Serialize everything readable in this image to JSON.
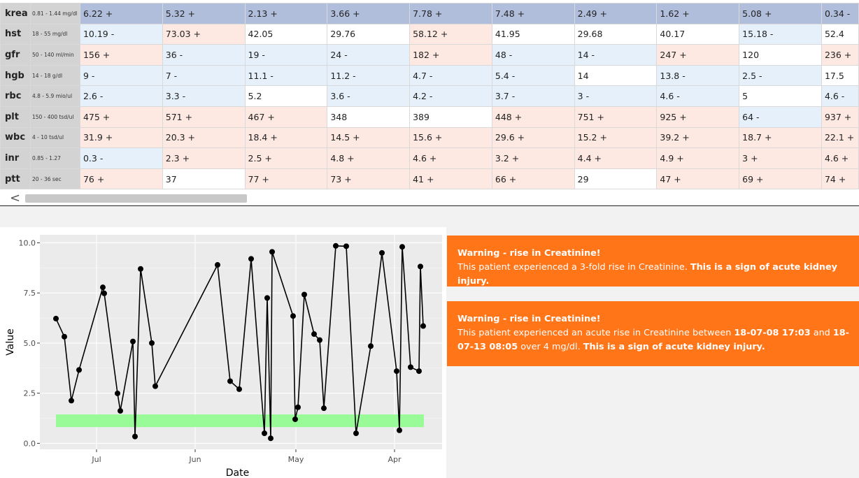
{
  "lab_table": {
    "rows": [
      {
        "param": "krea",
        "range": "0.81 - 1.44 mg/dl",
        "values": [
          {
            "v": "6.22 +",
            "s": "head"
          },
          {
            "v": "5.32 +",
            "s": "head"
          },
          {
            "v": "2.13 +",
            "s": "head"
          },
          {
            "v": "3.66 +",
            "s": "head"
          },
          {
            "v": "7.78 +",
            "s": "head"
          },
          {
            "v": "7.48 +",
            "s": "head"
          },
          {
            "v": "2.49 +",
            "s": "head"
          },
          {
            "v": "1.62 +",
            "s": "head"
          },
          {
            "v": "5.08 +",
            "s": "head"
          },
          {
            "v": "0.34 -",
            "s": "head"
          }
        ]
      },
      {
        "param": "hst",
        "range": "18 - 55 mg/dl",
        "values": [
          {
            "v": "10.19 -",
            "s": "low"
          },
          {
            "v": "73.03 +",
            "s": "high"
          },
          {
            "v": "42.05",
            "s": "normal"
          },
          {
            "v": "29.76",
            "s": "normal"
          },
          {
            "v": "58.12 +",
            "s": "high"
          },
          {
            "v": "41.95",
            "s": "normal"
          },
          {
            "v": "29.68",
            "s": "normal"
          },
          {
            "v": "40.17",
            "s": "normal"
          },
          {
            "v": "15.18 -",
            "s": "low"
          },
          {
            "v": "52.4",
            "s": "normal"
          }
        ]
      },
      {
        "param": "gfr",
        "range": "50 - 140 ml/min",
        "values": [
          {
            "v": "156 +",
            "s": "high"
          },
          {
            "v": "36 -",
            "s": "low"
          },
          {
            "v": "19 -",
            "s": "low"
          },
          {
            "v": "24 -",
            "s": "low"
          },
          {
            "v": "182 +",
            "s": "high"
          },
          {
            "v": "48 -",
            "s": "low"
          },
          {
            "v": "14 -",
            "s": "low"
          },
          {
            "v": "247 +",
            "s": "high"
          },
          {
            "v": "120",
            "s": "normal"
          },
          {
            "v": "236 +",
            "s": "high"
          }
        ]
      },
      {
        "param": "hgb",
        "range": "14 - 18 g/dl",
        "values": [
          {
            "v": "9 -",
            "s": "low"
          },
          {
            "v": "7 -",
            "s": "low"
          },
          {
            "v": "11.1 -",
            "s": "low"
          },
          {
            "v": "11.2 -",
            "s": "low"
          },
          {
            "v": "4.7 -",
            "s": "low"
          },
          {
            "v": "5.4 -",
            "s": "low"
          },
          {
            "v": "14",
            "s": "normal"
          },
          {
            "v": "13.8 -",
            "s": "low"
          },
          {
            "v": "2.5 -",
            "s": "low"
          },
          {
            "v": "17.5",
            "s": "normal"
          }
        ]
      },
      {
        "param": "rbc",
        "range": "4.8 - 5.9 mio/ul",
        "values": [
          {
            "v": "2.6 -",
            "s": "low"
          },
          {
            "v": "3.3 -",
            "s": "low"
          },
          {
            "v": "5.2",
            "s": "normal"
          },
          {
            "v": "3.6 -",
            "s": "low"
          },
          {
            "v": "4.2 -",
            "s": "low"
          },
          {
            "v": "3.7 -",
            "s": "low"
          },
          {
            "v": "3 -",
            "s": "low"
          },
          {
            "v": "4.6 -",
            "s": "low"
          },
          {
            "v": "5",
            "s": "normal"
          },
          {
            "v": "4.6 -",
            "s": "low"
          }
        ]
      },
      {
        "param": "plt",
        "range": "150 - 400 tsd/ul",
        "values": [
          {
            "v": "475 +",
            "s": "high"
          },
          {
            "v": "571 +",
            "s": "high"
          },
          {
            "v": "467 +",
            "s": "high"
          },
          {
            "v": "348",
            "s": "normal"
          },
          {
            "v": "389",
            "s": "normal"
          },
          {
            "v": "448 +",
            "s": "high"
          },
          {
            "v": "751 +",
            "s": "high"
          },
          {
            "v": "925 +",
            "s": "high"
          },
          {
            "v": "64 -",
            "s": "low"
          },
          {
            "v": "937 +",
            "s": "high"
          }
        ]
      },
      {
        "param": "wbc",
        "range": "4 - 10 tsd/ul",
        "values": [
          {
            "v": "31.9 +",
            "s": "high"
          },
          {
            "v": "20.3 +",
            "s": "high"
          },
          {
            "v": "18.4 +",
            "s": "high"
          },
          {
            "v": "14.5 +",
            "s": "high"
          },
          {
            "v": "15.6 +",
            "s": "high"
          },
          {
            "v": "29.6 +",
            "s": "high"
          },
          {
            "v": "15.2 +",
            "s": "high"
          },
          {
            "v": "39.2 +",
            "s": "high"
          },
          {
            "v": "18.7 +",
            "s": "high"
          },
          {
            "v": "22.1 +",
            "s": "high"
          }
        ]
      },
      {
        "param": "inr",
        "range": "0.85 - 1.27",
        "values": [
          {
            "v": "0.3 -",
            "s": "low"
          },
          {
            "v": "2.3 +",
            "s": "high"
          },
          {
            "v": "2.5 +",
            "s": "high"
          },
          {
            "v": "4.8 +",
            "s": "high"
          },
          {
            "v": "4.6 +",
            "s": "high"
          },
          {
            "v": "3.2 +",
            "s": "high"
          },
          {
            "v": "4.4 +",
            "s": "high"
          },
          {
            "v": "4.9 +",
            "s": "high"
          },
          {
            "v": "3 +",
            "s": "high"
          },
          {
            "v": "4.6 +",
            "s": "high"
          }
        ]
      },
      {
        "param": "ptt",
        "range": "20 - 36 sec",
        "values": [
          {
            "v": "76 +",
            "s": "high"
          },
          {
            "v": "37",
            "s": "normal"
          },
          {
            "v": "77 +",
            "s": "high"
          },
          {
            "v": "73 +",
            "s": "high"
          },
          {
            "v": "41 +",
            "s": "high"
          },
          {
            "v": "66 +",
            "s": "high"
          },
          {
            "v": "29",
            "s": "normal"
          },
          {
            "v": "47 +",
            "s": "high"
          },
          {
            "v": "69 +",
            "s": "high"
          },
          {
            "v": "74 +",
            "s": "high"
          }
        ]
      }
    ],
    "scroll_left_glyph": "<"
  },
  "chart_data": {
    "type": "line",
    "xlabel": "Date",
    "ylabel": "Value",
    "ylim": [
      -0.3,
      10.4
    ],
    "x_ticks": [
      "Jul",
      "Jun",
      "May",
      "Apr"
    ],
    "y_ticks": [
      "0.0",
      "2.5",
      "5.0",
      "7.5",
      "10.0"
    ],
    "y_tick_values": [
      0,
      2.5,
      5,
      7.5,
      10
    ],
    "reference_band": {
      "low": 0.81,
      "high": 1.44,
      "color": "#98fb98"
    },
    "grid": true,
    "line_color": "#000000",
    "panel_color": "#ebebeb",
    "series": [
      {
        "values": [
          6.22,
          5.32,
          2.13,
          3.66,
          7.78,
          7.48,
          2.49,
          1.62,
          5.08,
          0.34,
          8.7,
          5.0,
          2.85,
          8.9,
          3.1,
          2.7,
          9.2,
          0.5,
          7.25,
          0.25,
          9.55,
          6.35,
          1.2,
          1.8,
          7.42,
          5.45,
          5.15,
          1.75,
          9.85,
          9.83,
          0.5,
          4.85,
          9.5,
          3.6,
          0.65,
          9.8,
          3.8,
          3.6,
          8.82,
          5.85
        ]
      }
    ]
  },
  "warnings": [
    {
      "title": "Warning - rise in Creatinine!",
      "text": "This patient experienced a 3-fold rise in Creatinine. ",
      "bold": "This is a sign of acute kidney injury."
    },
    {
      "title": "Warning - rise in Creatinine!",
      "text_1": "This patient experienced an acute rise in Creatinine between ",
      "date_1": "18-07-08 17:03",
      "text_2": " and ",
      "date_2": "18-07-13 08:05",
      "text_3": " over 4 mg/dl. ",
      "bold": "This is a sign of acute kidney injury."
    }
  ]
}
